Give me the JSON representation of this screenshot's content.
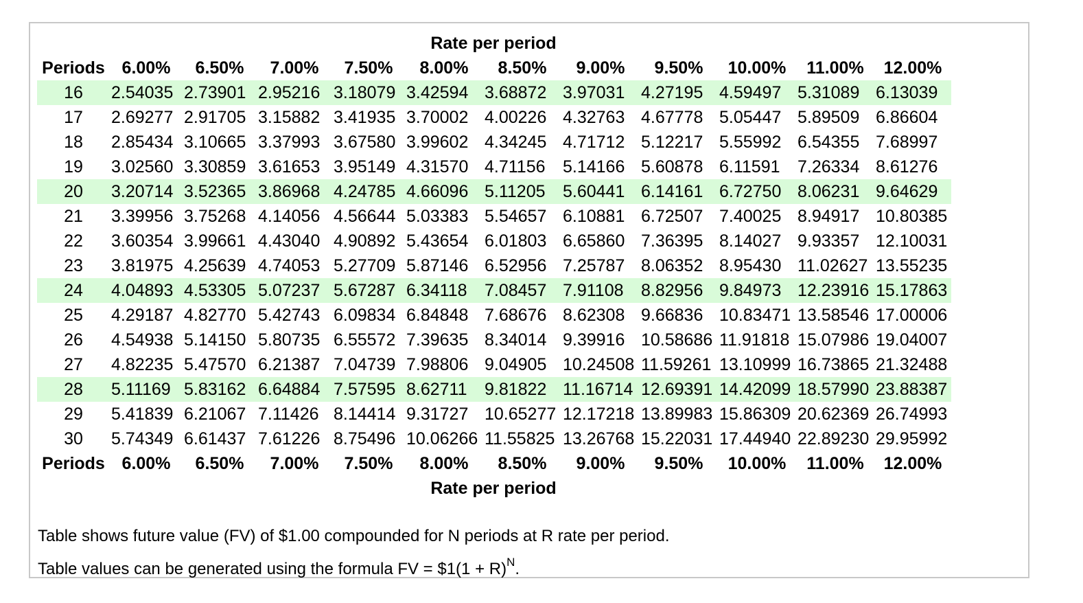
{
  "rate_heading_top": "Rate per period",
  "rate_heading_bottom": "Rate per period",
  "header_periods": "Periods",
  "rates": [
    "6.00%",
    "6.50%",
    "7.00%",
    "7.50%",
    "8.00%",
    "8.50%",
    "9.00%",
    "9.50%",
    "10.00%",
    "11.00%",
    "12.00%"
  ],
  "highlight_color": "#d9fbd9",
  "rows": [
    {
      "period": "16",
      "highlight": true,
      "values": [
        "2.54035",
        "2.73901",
        "2.95216",
        "3.18079",
        "3.42594",
        "3.68872",
        "3.97031",
        "4.27195",
        "4.59497",
        "5.31089",
        "6.13039"
      ]
    },
    {
      "period": "17",
      "highlight": false,
      "values": [
        "2.69277",
        "2.91705",
        "3.15882",
        "3.41935",
        "3.70002",
        "4.00226",
        "4.32763",
        "4.67778",
        "5.05447",
        "5.89509",
        "6.86604"
      ]
    },
    {
      "period": "18",
      "highlight": false,
      "values": [
        "2.85434",
        "3.10665",
        "3.37993",
        "3.67580",
        "3.99602",
        "4.34245",
        "4.71712",
        "5.12217",
        "5.55992",
        "6.54355",
        "7.68997"
      ]
    },
    {
      "period": "19",
      "highlight": false,
      "values": [
        "3.02560",
        "3.30859",
        "3.61653",
        "3.95149",
        "4.31570",
        "4.71156",
        "5.14166",
        "5.60878",
        "6.11591",
        "7.26334",
        "8.61276"
      ]
    },
    {
      "period": "20",
      "highlight": true,
      "values": [
        "3.20714",
        "3.52365",
        "3.86968",
        "4.24785",
        "4.66096",
        "5.11205",
        "5.60441",
        "6.14161",
        "6.72750",
        "8.06231",
        "9.64629"
      ]
    },
    {
      "period": "21",
      "highlight": false,
      "values": [
        "3.39956",
        "3.75268",
        "4.14056",
        "4.56644",
        "5.03383",
        "5.54657",
        "6.10881",
        "6.72507",
        "7.40025",
        "8.94917",
        "10.80385"
      ]
    },
    {
      "period": "22",
      "highlight": false,
      "values": [
        "3.60354",
        "3.99661",
        "4.43040",
        "4.90892",
        "5.43654",
        "6.01803",
        "6.65860",
        "7.36395",
        "8.14027",
        "9.93357",
        "12.10031"
      ]
    },
    {
      "period": "23",
      "highlight": false,
      "values": [
        "3.81975",
        "4.25639",
        "4.74053",
        "5.27709",
        "5.87146",
        "6.52956",
        "7.25787",
        "8.06352",
        "8.95430",
        "11.02627",
        "13.55235"
      ]
    },
    {
      "period": "24",
      "highlight": true,
      "values": [
        "4.04893",
        "4.53305",
        "5.07237",
        "5.67287",
        "6.34118",
        "7.08457",
        "7.91108",
        "8.82956",
        "9.84973",
        "12.23916",
        "15.17863"
      ]
    },
    {
      "period": "25",
      "highlight": false,
      "values": [
        "4.29187",
        "4.82770",
        "5.42743",
        "6.09834",
        "6.84848",
        "7.68676",
        "8.62308",
        "9.66836",
        "10.83471",
        "13.58546",
        "17.00006"
      ]
    },
    {
      "period": "26",
      "highlight": false,
      "values": [
        "4.54938",
        "5.14150",
        "5.80735",
        "6.55572",
        "7.39635",
        "8.34014",
        "9.39916",
        "10.58686",
        "11.91818",
        "15.07986",
        "19.04007"
      ]
    },
    {
      "period": "27",
      "highlight": false,
      "values": [
        "4.82235",
        "5.47570",
        "6.21387",
        "7.04739",
        "7.98806",
        "9.04905",
        "10.24508",
        "11.59261",
        "13.10999",
        "16.73865",
        "21.32488"
      ]
    },
    {
      "period": "28",
      "highlight": true,
      "values": [
        "5.11169",
        "5.83162",
        "6.64884",
        "7.57595",
        "8.62711",
        "9.81822",
        "11.16714",
        "12.69391",
        "14.42099",
        "18.57990",
        "23.88387"
      ]
    },
    {
      "period": "29",
      "highlight": false,
      "values": [
        "5.41839",
        "6.21067",
        "7.11426",
        "8.14414",
        "9.31727",
        "10.65277",
        "12.17218",
        "13.89983",
        "15.86309",
        "20.62369",
        "26.74993"
      ]
    },
    {
      "period": "30",
      "highlight": false,
      "values": [
        "5.74349",
        "6.61437",
        "7.61226",
        "8.75496",
        "10.06266",
        "11.55825",
        "13.26768",
        "15.22031",
        "17.44940",
        "22.89230",
        "29.95992"
      ]
    }
  ],
  "notes": {
    "line1": "Table shows future value (FV) of $1.00 compounded for N periods at R rate per period.",
    "line2_prefix": "Table values can be generated using the formula FV = $1(1 + R)",
    "line2_exponent": "N",
    "line2_suffix": "."
  }
}
